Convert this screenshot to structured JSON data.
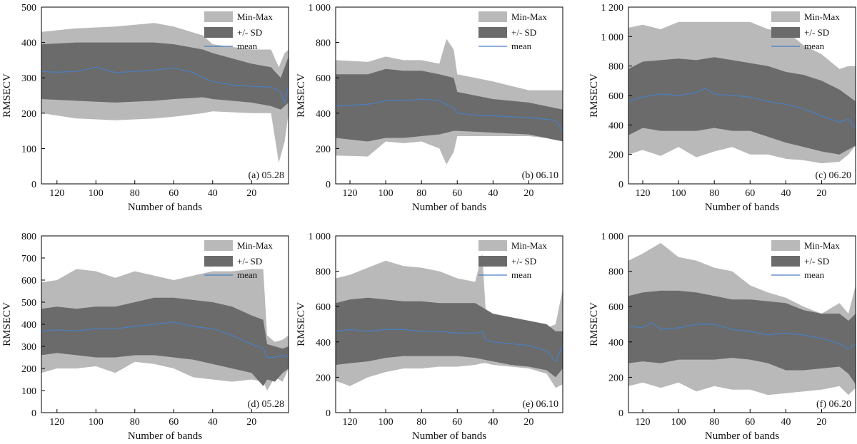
{
  "colors": {
    "minmax": "#b9b9b9",
    "sd": "#6b6b6b",
    "mean": "#4a7fc0",
    "axis": "#000000"
  },
  "legend": {
    "minmax": "Min-Max",
    "sd": "+/- SD",
    "mean": "mean"
  },
  "chart_data": [
    {
      "type": "area",
      "panel_label": "(a) 05.28",
      "xlabel": "Number of bands",
      "ylabel": "RMSECV",
      "xlim": [
        128,
        1
      ],
      "ylim": [
        0,
        500
      ],
      "xticks": [
        "120",
        "100",
        "80",
        "60",
        "40",
        "20"
      ],
      "yticks": [
        "0",
        "100",
        "200",
        "300",
        "400",
        "500"
      ],
      "legend_position": "top-right",
      "series": [
        {
          "name": "Min-Max",
          "x": [
            128,
            110,
            90,
            70,
            60,
            45,
            40,
            20,
            10,
            6,
            3,
            1
          ],
          "lower": [
            200,
            185,
            180,
            185,
            190,
            200,
            205,
            200,
            200,
            60,
            120,
            200
          ],
          "upper": [
            430,
            440,
            445,
            455,
            445,
            420,
            395,
            380,
            380,
            330,
            370,
            380
          ]
        },
        {
          "name": "+/- SD",
          "x": [
            128,
            110,
            90,
            70,
            60,
            45,
            40,
            20,
            10,
            5,
            1
          ],
          "lower": [
            240,
            235,
            230,
            235,
            240,
            245,
            240,
            230,
            220,
            210,
            230
          ],
          "upper": [
            395,
            400,
            400,
            400,
            395,
            380,
            370,
            340,
            330,
            300,
            360
          ]
        },
        {
          "name": "mean",
          "x": [
            128,
            120,
            110,
            100,
            90,
            80,
            70,
            60,
            50,
            45,
            40,
            30,
            20,
            10,
            5,
            3,
            1
          ],
          "values": [
            318,
            316,
            318,
            330,
            315,
            318,
            322,
            328,
            315,
            300,
            290,
            280,
            276,
            274,
            260,
            230,
            280
          ]
        }
      ]
    },
    {
      "type": "area",
      "panel_label": "(b) 06.10",
      "xlabel": "Number of bands",
      "ylabel": "RMSECV",
      "xlim": [
        128,
        1
      ],
      "ylim": [
        0,
        1000
      ],
      "xticks": [
        "120",
        "100",
        "80",
        "60",
        "40",
        "20"
      ],
      "yticks": [
        "0",
        "200",
        "400",
        "600",
        "800",
        "1 000"
      ],
      "legend_position": "top-right",
      "series": [
        {
          "name": "Min-Max",
          "x": [
            128,
            110,
            100,
            90,
            80,
            70,
            66,
            62,
            60,
            40,
            20,
            1
          ],
          "lower": [
            160,
            155,
            240,
            230,
            240,
            200,
            110,
            180,
            270,
            270,
            270,
            250
          ],
          "upper": [
            700,
            690,
            720,
            700,
            700,
            680,
            820,
            760,
            620,
            580,
            530,
            530
          ]
        },
        {
          "name": "+/- SD",
          "x": [
            128,
            110,
            100,
            90,
            80,
            70,
            62,
            60,
            40,
            20,
            1
          ],
          "lower": [
            260,
            240,
            260,
            260,
            270,
            280,
            300,
            300,
            290,
            280,
            240
          ],
          "upper": [
            620,
            620,
            650,
            640,
            640,
            620,
            600,
            520,
            480,
            460,
            420
          ]
        },
        {
          "name": "mean",
          "x": [
            128,
            110,
            100,
            90,
            80,
            70,
            62,
            60,
            50,
            40,
            30,
            20,
            10,
            5,
            1
          ],
          "values": [
            440,
            450,
            470,
            470,
            480,
            470,
            430,
            400,
            390,
            385,
            380,
            375,
            365,
            360,
            300
          ]
        }
      ]
    },
    {
      "type": "area",
      "panel_label": "(c) 06.20",
      "xlabel": "Number of bands",
      "ylabel": "RMSECV",
      "xlim": [
        128,
        1
      ],
      "ylim": [
        0,
        1200
      ],
      "xticks": [
        "120",
        "100",
        "80",
        "60",
        "40",
        "20"
      ],
      "yticks": [
        "0",
        "200",
        "400",
        "600",
        "800",
        "1 000",
        "1 200"
      ],
      "legend_position": "top-right",
      "series": [
        {
          "name": "Min-Max",
          "x": [
            128,
            120,
            110,
            100,
            90,
            80,
            70,
            60,
            50,
            40,
            30,
            20,
            10,
            5,
            1
          ],
          "lower": [
            200,
            230,
            190,
            250,
            180,
            220,
            250,
            200,
            200,
            170,
            160,
            140,
            150,
            200,
            260
          ],
          "upper": [
            1060,
            1080,
            1050,
            1100,
            1100,
            1100,
            1100,
            1100,
            1050,
            1040,
            940,
            880,
            780,
            800,
            800
          ]
        },
        {
          "name": "+/- SD",
          "x": [
            128,
            120,
            110,
            100,
            90,
            80,
            70,
            60,
            50,
            40,
            30,
            20,
            10,
            1
          ],
          "lower": [
            330,
            380,
            360,
            360,
            360,
            380,
            360,
            360,
            320,
            280,
            250,
            220,
            200,
            260
          ],
          "upper": [
            780,
            830,
            840,
            850,
            840,
            860,
            840,
            820,
            800,
            760,
            740,
            700,
            640,
            560
          ]
        },
        {
          "name": "mean",
          "x": [
            128,
            120,
            110,
            100,
            90,
            85,
            80,
            70,
            60,
            50,
            40,
            30,
            20,
            10,
            5,
            1
          ],
          "values": [
            560,
            590,
            610,
            600,
            620,
            650,
            610,
            600,
            590,
            560,
            540,
            510,
            460,
            420,
            440,
            380
          ]
        }
      ]
    },
    {
      "type": "area",
      "panel_label": "(d) 05.28",
      "xlabel": "Number of bands",
      "ylabel": "RMSECV",
      "xlim": [
        128,
        1
      ],
      "ylim": [
        0,
        800
      ],
      "xticks": [
        "120",
        "100",
        "80",
        "60",
        "40",
        "20"
      ],
      "yticks": [
        "0",
        "100",
        "200",
        "300",
        "400",
        "500",
        "600",
        "700",
        "800"
      ],
      "legend_position": "top-right",
      "series": [
        {
          "name": "Min-Max",
          "x": [
            128,
            120,
            110,
            100,
            90,
            80,
            70,
            60,
            50,
            40,
            30,
            20,
            14,
            12,
            8,
            4,
            1
          ],
          "lower": [
            180,
            200,
            200,
            210,
            180,
            230,
            220,
            200,
            160,
            150,
            140,
            150,
            140,
            100,
            160,
            140,
            200
          ],
          "upper": [
            590,
            600,
            650,
            640,
            610,
            640,
            620,
            600,
            620,
            640,
            640,
            650,
            650,
            350,
            320,
            330,
            350
          ]
        },
        {
          "name": "+/- SD",
          "x": [
            128,
            120,
            110,
            100,
            90,
            80,
            70,
            60,
            50,
            40,
            30,
            20,
            14,
            12,
            8,
            4,
            1
          ],
          "lower": [
            260,
            270,
            260,
            250,
            250,
            260,
            260,
            250,
            240,
            220,
            200,
            180,
            120,
            150,
            140,
            180,
            200
          ],
          "upper": [
            470,
            480,
            470,
            480,
            480,
            500,
            520,
            520,
            510,
            500,
            480,
            440,
            420,
            310,
            300,
            290,
            300
          ]
        },
        {
          "name": "mean",
          "x": [
            128,
            120,
            110,
            100,
            90,
            80,
            70,
            60,
            50,
            40,
            30,
            20,
            14,
            12,
            8,
            4,
            1
          ],
          "values": [
            370,
            375,
            370,
            380,
            380,
            390,
            400,
            410,
            390,
            380,
            350,
            310,
            290,
            250,
            250,
            260,
            250
          ]
        }
      ]
    },
    {
      "type": "area",
      "panel_label": "(e) 06.10",
      "xlabel": "Number of bands",
      "ylabel": "RMSECV",
      "xlim": [
        128,
        1
      ],
      "ylim": [
        0,
        1000
      ],
      "xticks": [
        "120",
        "100",
        "80",
        "60",
        "40",
        "20"
      ],
      "yticks": [
        "0",
        "200",
        "400",
        "600",
        "800",
        "1 000"
      ],
      "legend_position": "top-right",
      "series": [
        {
          "name": "Min-Max",
          "x": [
            128,
            120,
            110,
            100,
            90,
            80,
            70,
            60,
            50,
            46,
            44,
            40,
            30,
            20,
            10,
            5,
            1
          ],
          "lower": [
            180,
            150,
            200,
            230,
            250,
            250,
            260,
            260,
            270,
            280,
            280,
            270,
            260,
            250,
            220,
            140,
            160
          ],
          "upper": [
            760,
            780,
            820,
            860,
            830,
            820,
            800,
            760,
            740,
            900,
            560,
            520,
            520,
            500,
            480,
            500,
            700
          ]
        },
        {
          "name": "+/- SD",
          "x": [
            128,
            120,
            110,
            100,
            90,
            80,
            70,
            60,
            50,
            40,
            30,
            20,
            10,
            5,
            1
          ],
          "lower": [
            270,
            280,
            290,
            310,
            320,
            320,
            320,
            320,
            310,
            290,
            270,
            260,
            240,
            200,
            250
          ],
          "upper": [
            620,
            640,
            650,
            640,
            630,
            630,
            620,
            620,
            620,
            560,
            540,
            520,
            500,
            460,
            460
          ]
        },
        {
          "name": "mean",
          "x": [
            128,
            120,
            110,
            100,
            90,
            80,
            70,
            60,
            50,
            46,
            44,
            40,
            30,
            20,
            10,
            5,
            1
          ],
          "values": [
            460,
            470,
            460,
            470,
            470,
            460,
            460,
            450,
            450,
            460,
            410,
            400,
            390,
            380,
            350,
            290,
            380
          ]
        }
      ]
    },
    {
      "type": "area",
      "panel_label": "(f) 06.20",
      "xlabel": "Number of bands",
      "ylabel": "RMSECV",
      "xlim": [
        128,
        1
      ],
      "ylim": [
        0,
        1000
      ],
      "xticks": [
        "120",
        "100",
        "80",
        "60",
        "40",
        "20"
      ],
      "yticks": [
        "0",
        "200",
        "400",
        "600",
        "800",
        "1 000"
      ],
      "legend_position": "top-right",
      "series": [
        {
          "name": "Min-Max",
          "x": [
            128,
            120,
            110,
            100,
            90,
            80,
            70,
            60,
            50,
            40,
            30,
            20,
            10,
            5,
            1
          ],
          "lower": [
            150,
            170,
            140,
            170,
            120,
            150,
            130,
            130,
            100,
            110,
            120,
            130,
            150,
            100,
            140
          ],
          "upper": [
            860,
            900,
            960,
            880,
            860,
            820,
            800,
            720,
            680,
            650,
            600,
            560,
            620,
            560,
            720
          ]
        },
        {
          "name": "+/- SD",
          "x": [
            128,
            120,
            110,
            100,
            90,
            80,
            70,
            60,
            50,
            40,
            30,
            20,
            10,
            5,
            1
          ],
          "lower": [
            280,
            290,
            280,
            300,
            300,
            300,
            310,
            300,
            280,
            240,
            240,
            250,
            260,
            220,
            160
          ],
          "upper": [
            660,
            680,
            690,
            690,
            680,
            660,
            640,
            640,
            630,
            620,
            580,
            560,
            560,
            520,
            560
          ]
        },
        {
          "name": "mean",
          "x": [
            128,
            120,
            115,
            110,
            100,
            90,
            80,
            70,
            60,
            50,
            40,
            30,
            20,
            10,
            5,
            1
          ],
          "values": [
            490,
            480,
            510,
            470,
            480,
            500,
            500,
            470,
            460,
            440,
            450,
            440,
            420,
            390,
            360,
            390
          ]
        }
      ]
    }
  ]
}
